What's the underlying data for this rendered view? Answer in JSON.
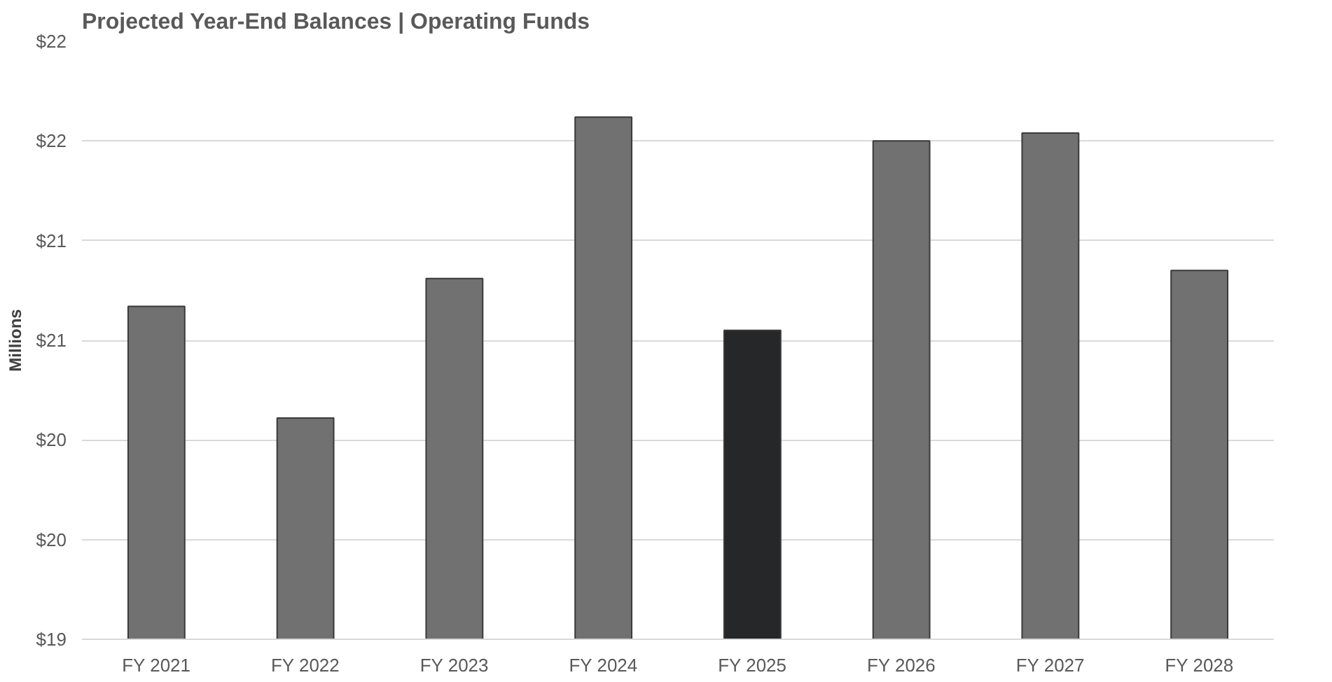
{
  "chart_data": {
    "type": "bar",
    "title": "Projected Year-End Balances | Operating Funds",
    "ylabel": "Millions",
    "categories": [
      "FY 2021",
      "FY 2022",
      "FY 2023",
      "FY 2024",
      "FY 2025",
      "FY 2026",
      "FY 2027",
      "FY 2028"
    ],
    "values": [
      20.67,
      20.11,
      20.81,
      21.62,
      20.55,
      21.5,
      21.54,
      20.85
    ],
    "colors": [
      "#717171",
      "#717171",
      "#717171",
      "#717171",
      "#262729",
      "#717171",
      "#717171",
      "#717171"
    ],
    "ylim": [
      19,
      22
    ],
    "yticks": [
      {
        "value": 19,
        "label": "$19"
      },
      {
        "value": 19.5,
        "label": "$20"
      },
      {
        "value": 20,
        "label": "$20"
      },
      {
        "value": 20.5,
        "label": "$21"
      },
      {
        "value": 21,
        "label": "$21"
      },
      {
        "value": 21.5,
        "label": "$22"
      },
      {
        "value": 22,
        "label": "$22"
      }
    ],
    "grid": "y"
  }
}
